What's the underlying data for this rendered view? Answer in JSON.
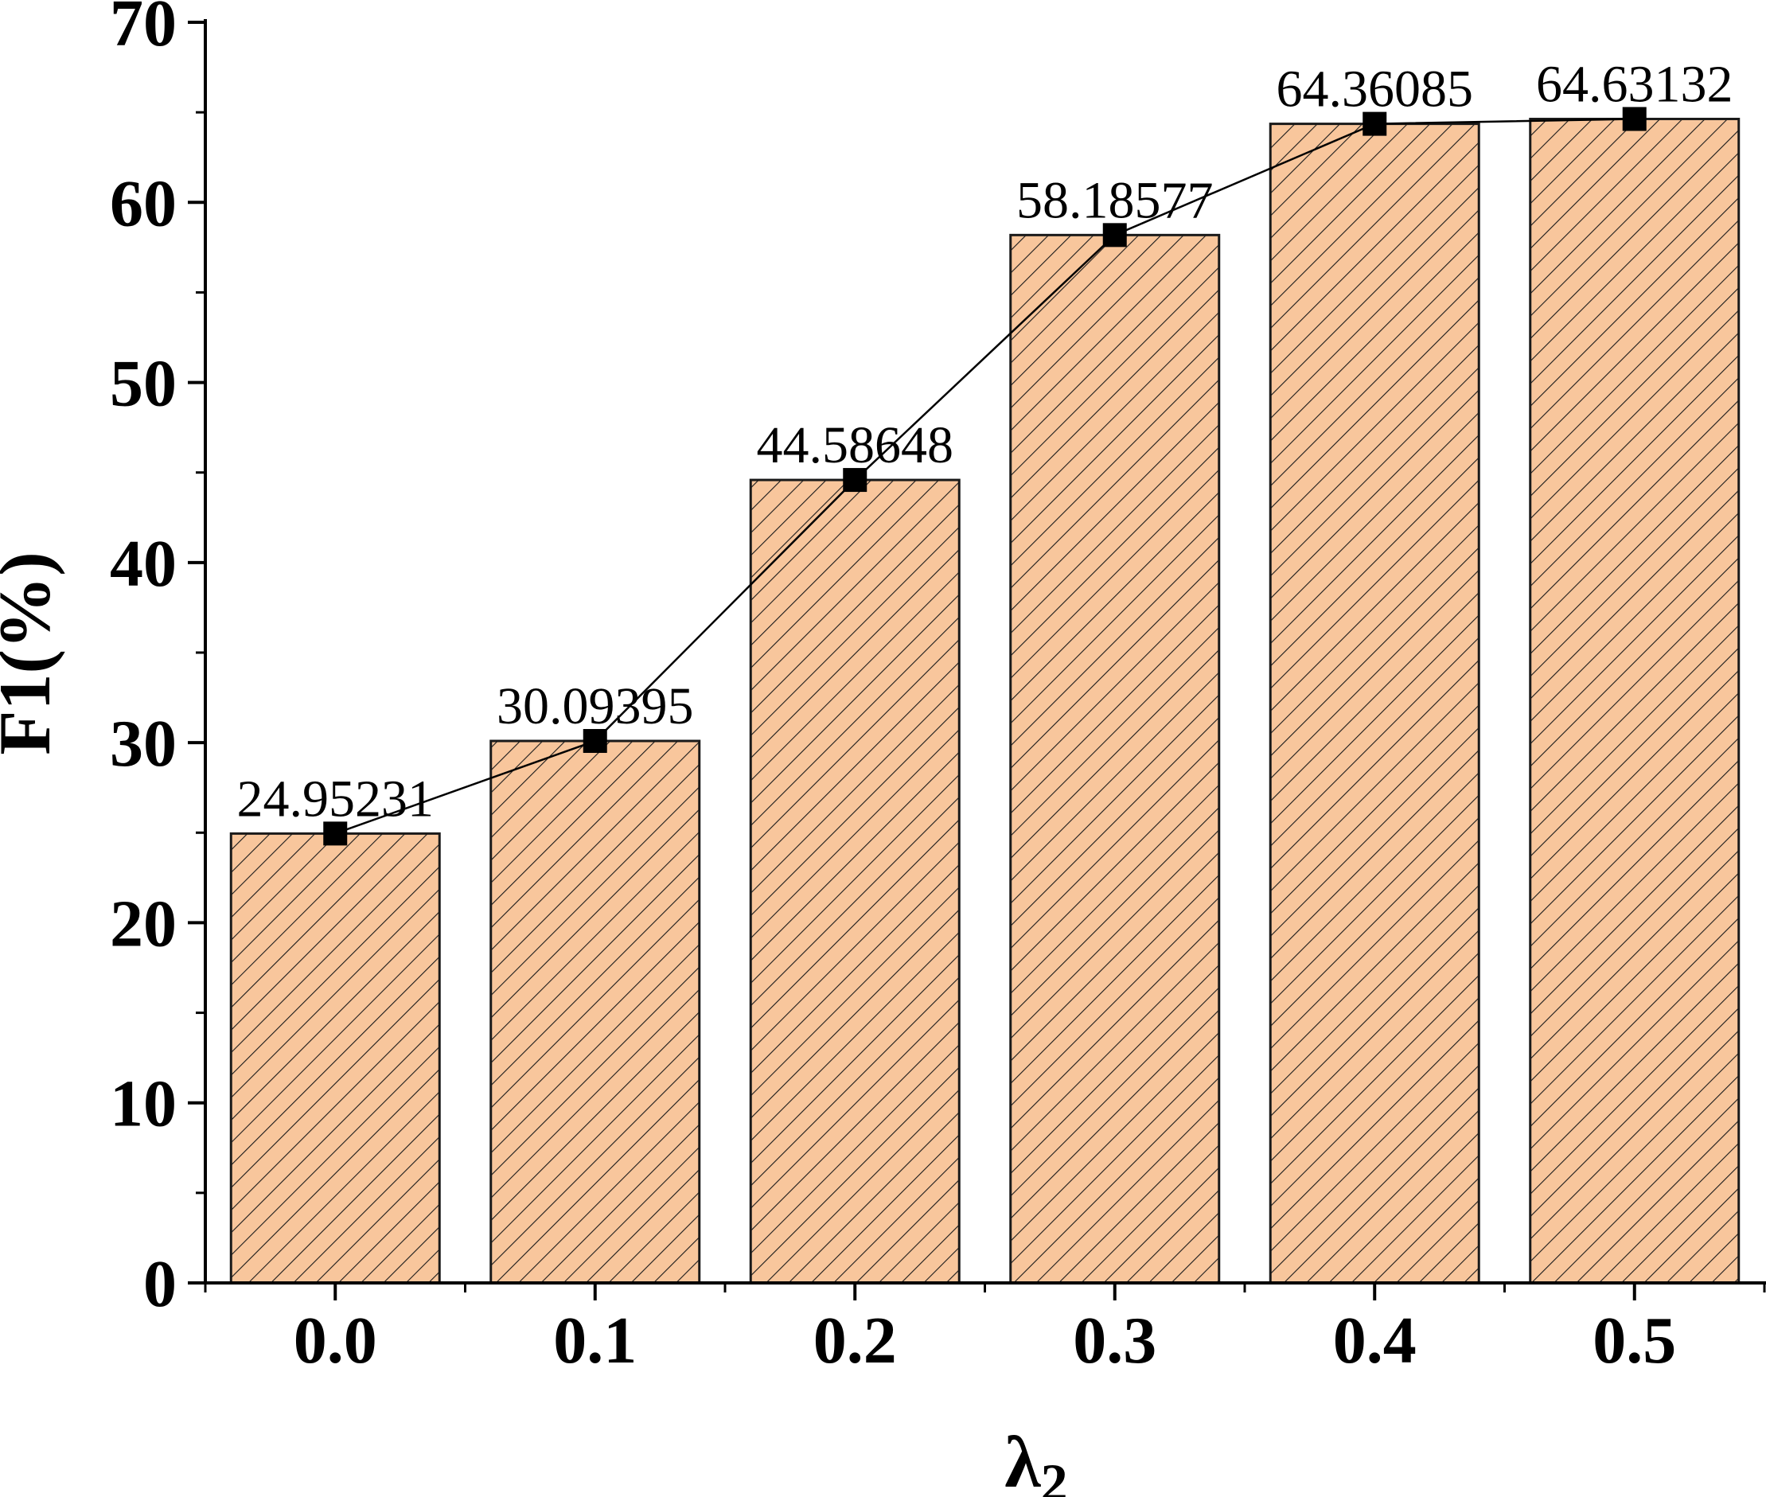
{
  "chart_data": {
    "type": "bar",
    "categories": [
      "0.0",
      "0.1",
      "0.2",
      "0.3",
      "0.4",
      "0.5"
    ],
    "values": [
      24.95231,
      30.09395,
      44.58648,
      58.18577,
      64.36085,
      64.63132
    ],
    "data_labels": [
      "24.95231",
      "30.09395",
      "44.58648",
      "58.18577",
      "64.36085",
      "64.63132"
    ],
    "overlay_line": true,
    "title": "",
    "xlabel": "λ",
    "xlabel_subscript": "2",
    "ylabel": "F1(%)",
    "ylim": [
      0,
      70
    ],
    "yticks": [
      "0",
      "10",
      "20",
      "30",
      "40",
      "50",
      "60",
      "70"
    ],
    "grid": false,
    "colors": {
      "bar_fill": "#f8c69c",
      "bar_stroke": "#1a1a1a",
      "hatch": "#1a1a1a",
      "line": "#000000",
      "marker": "#000000"
    }
  }
}
